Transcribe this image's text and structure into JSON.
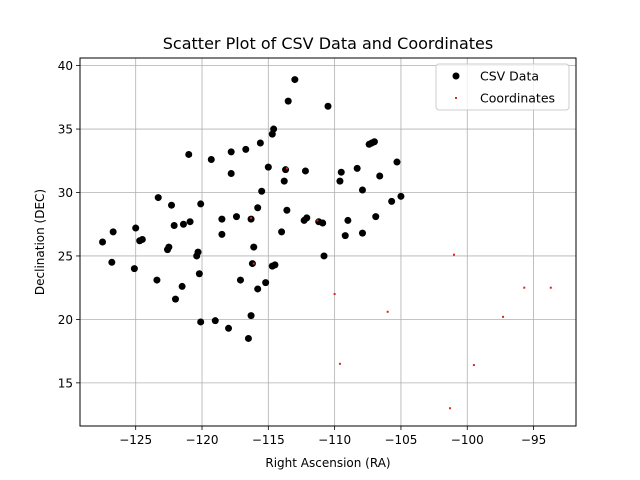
{
  "chart_data": {
    "type": "scatter",
    "title": "Scatter Plot of CSV Data and Coordinates",
    "xlabel": "Right Ascension (RA)",
    "ylabel": "Declination (DEC)",
    "xlim": [
      -129.2,
      -91.8
    ],
    "ylim": [
      11.6,
      40.6
    ],
    "xticks": [
      -125,
      -120,
      -115,
      -110,
      -105,
      -100,
      -95
    ],
    "xtick_labels": [
      "−125",
      "−120",
      "−115",
      "−110",
      "−105",
      "−100",
      "−95"
    ],
    "yticks": [
      15,
      20,
      25,
      30,
      35,
      40
    ],
    "ytick_labels": [
      "15",
      "20",
      "25",
      "30",
      "35",
      "40"
    ],
    "grid": true,
    "legend_position": "top-right",
    "series": [
      {
        "name": "CSV Data",
        "color": "#000000",
        "marker": "large-circle",
        "points": [
          [
            -113.0,
            38.9
          ],
          [
            -113.5,
            37.2
          ],
          [
            -110.5,
            36.8
          ],
          [
            -114.6,
            35.0
          ],
          [
            -114.7,
            34.6
          ],
          [
            -115.6,
            33.9
          ],
          [
            -116.7,
            33.4
          ],
          [
            -117.8,
            33.2
          ],
          [
            -121.0,
            33.0
          ],
          [
            -119.3,
            32.6
          ],
          [
            -115.0,
            32.0
          ],
          [
            -113.7,
            31.8
          ],
          [
            -112.2,
            31.7
          ],
          [
            -117.8,
            31.5
          ],
          [
            -113.8,
            30.9
          ],
          [
            -115.5,
            30.1
          ],
          [
            -123.3,
            29.6
          ],
          [
            -120.1,
            29.1
          ],
          [
            -122.3,
            29.0
          ],
          [
            -115.8,
            28.8
          ],
          [
            -113.6,
            28.6
          ],
          [
            -117.4,
            28.1
          ],
          [
            -118.5,
            27.9
          ],
          [
            -116.3,
            27.9
          ],
          [
            -112.3,
            27.8
          ],
          [
            -112.1,
            28.0
          ],
          [
            -111.2,
            27.7
          ],
          [
            -110.9,
            27.6
          ],
          [
            -120.9,
            27.7
          ],
          [
            -121.4,
            27.5
          ],
          [
            -122.1,
            27.4
          ],
          [
            -125.0,
            27.2
          ],
          [
            -126.7,
            26.9
          ],
          [
            -127.5,
            26.1
          ],
          [
            -124.5,
            26.3
          ],
          [
            -124.7,
            26.2
          ],
          [
            -118.5,
            26.7
          ],
          [
            -114.0,
            26.9
          ],
          [
            -122.5,
            25.7
          ],
          [
            -122.6,
            25.5
          ],
          [
            -120.3,
            25.3
          ],
          [
            -120.4,
            25.0
          ],
          [
            -116.1,
            25.7
          ],
          [
            -110.8,
            25.0
          ],
          [
            -126.8,
            24.5
          ],
          [
            -125.1,
            24.0
          ],
          [
            -116.2,
            24.4
          ],
          [
            -114.5,
            24.3
          ],
          [
            -114.7,
            24.2
          ],
          [
            -120.2,
            23.6
          ],
          [
            -123.4,
            23.1
          ],
          [
            -117.1,
            23.1
          ],
          [
            -115.2,
            22.9
          ],
          [
            -121.5,
            22.6
          ],
          [
            -115.8,
            22.4
          ],
          [
            -122.0,
            21.6
          ],
          [
            -120.1,
            19.8
          ],
          [
            -119.0,
            19.9
          ],
          [
            -118.0,
            19.3
          ],
          [
            -116.3,
            20.3
          ],
          [
            -116.5,
            18.5
          ],
          [
            -109.5,
            31.6
          ],
          [
            -108.3,
            31.9
          ],
          [
            -109.6,
            30.9
          ],
          [
            -107.9,
            30.2
          ],
          [
            -109.0,
            27.8
          ],
          [
            -109.2,
            26.6
          ],
          [
            -107.9,
            26.8
          ],
          [
            -106.9,
            28.1
          ],
          [
            -105.7,
            29.3
          ],
          [
            -105.0,
            29.7
          ],
          [
            -106.6,
            31.3
          ],
          [
            -105.3,
            32.4
          ],
          [
            -107.2,
            33.9
          ],
          [
            -107.0,
            34.0
          ],
          [
            -107.4,
            33.8
          ]
        ]
      },
      {
        "name": "Coordinates",
        "color": "#d62728",
        "marker": "small-square",
        "points": [
          [
            -113.6,
            31.9
          ],
          [
            -116.3,
            28.0
          ],
          [
            -111.3,
            27.8
          ],
          [
            -116.1,
            24.4
          ],
          [
            -110.0,
            22.0
          ],
          [
            -109.6,
            16.5
          ],
          [
            -106.0,
            20.6
          ],
          [
            -101.0,
            25.1
          ],
          [
            -101.3,
            13.0
          ],
          [
            -99.5,
            16.4
          ],
          [
            -97.3,
            20.2
          ],
          [
            -95.7,
            22.5
          ],
          [
            -93.7,
            22.5
          ]
        ]
      }
    ]
  }
}
